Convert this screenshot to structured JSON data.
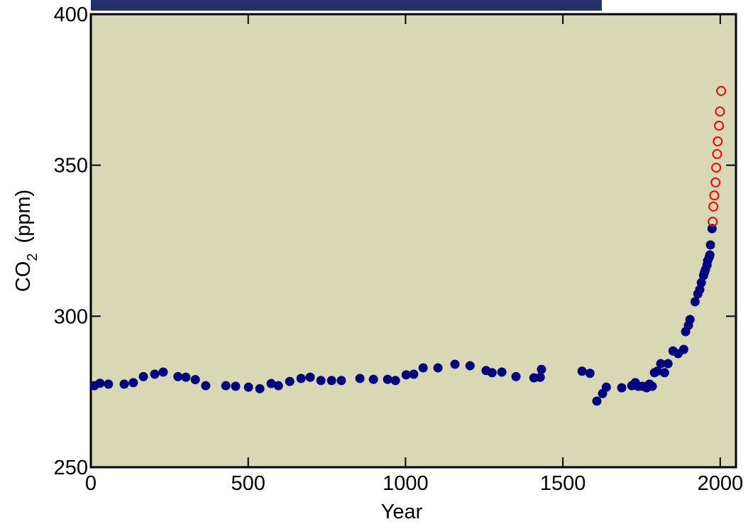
{
  "chart_data": {
    "type": "scatter",
    "xlabel": "Year",
    "ylabel_parts": [
      "CO",
      "2",
      "(ppm)"
    ],
    "xlim": [
      0,
      2050
    ],
    "ylim": [
      250,
      400
    ],
    "xticks": [
      0,
      500,
      1000,
      1500,
      2000
    ],
    "yticks": [
      250,
      300,
      350,
      400
    ],
    "grid": false,
    "background": "#d8d8b4",
    "series": [
      {
        "color": "#000080",
        "marker": "filled",
        "x": [
          11,
          29,
          56,
          106,
          135,
          167,
          203,
          230,
          277,
          302,
          332,
          365,
          429,
          460,
          501,
          537,
          573,
          596,
          632,
          668,
          697,
          731,
          765,
          796,
          855,
          898,
          943,
          968,
          1002,
          1026,
          1056,
          1103,
          1157,
          1205,
          1256,
          1275,
          1306,
          1351,
          1408,
          1428,
          1432,
          1561,
          1586,
          1608,
          1626,
          1638,
          1687,
          1719,
          1730,
          1739,
          1753,
          1766,
          1775,
          1784,
          1791,
          1800,
          1811,
          1823,
          1834,
          1850,
          1866,
          1884,
          1890,
          1899,
          1904,
          1920,
          1929,
          1935,
          1940,
          1947,
          1950,
          1953,
          1958,
          1960,
          1965,
          1967,
          1969,
          1974
        ],
        "values": [
          277,
          277.8,
          277.5,
          277.5,
          278,
          280,
          280.8,
          281.5,
          280,
          279.8,
          279,
          277,
          277,
          276.8,
          276.5,
          276,
          277.7,
          277,
          278.4,
          279.4,
          279.8,
          278.7,
          278.7,
          278.7,
          279.4,
          279.1,
          279.1,
          278.7,
          280.6,
          280.8,
          282.9,
          282.9,
          284.1,
          283.6,
          282,
          281.3,
          281.5,
          280,
          279.6,
          279.8,
          282.4,
          281.8,
          281.1,
          271.9,
          274.4,
          276.5,
          276.3,
          277,
          278,
          276.8,
          276.8,
          276.3,
          277.5,
          276.8,
          281.3,
          281.8,
          284.3,
          281.3,
          284.3,
          288.5,
          287.6,
          289,
          294.9,
          297,
          298.9,
          304.8,
          307.4,
          308.8,
          311.1,
          313.5,
          314.5,
          315.4,
          316.9,
          318.4,
          319.5,
          320.3,
          323.6,
          329
        ]
      },
      {
        "color": "#ff0000",
        "marker": "open",
        "x": [
          1976,
          1978,
          1981,
          1985,
          1987,
          1990,
          1992,
          1996,
          1999,
          2003
        ],
        "values": [
          331.3,
          336.3,
          340,
          344.3,
          349.2,
          353.7,
          357.9,
          363.1,
          367.8,
          374.6
        ]
      }
    ]
  }
}
